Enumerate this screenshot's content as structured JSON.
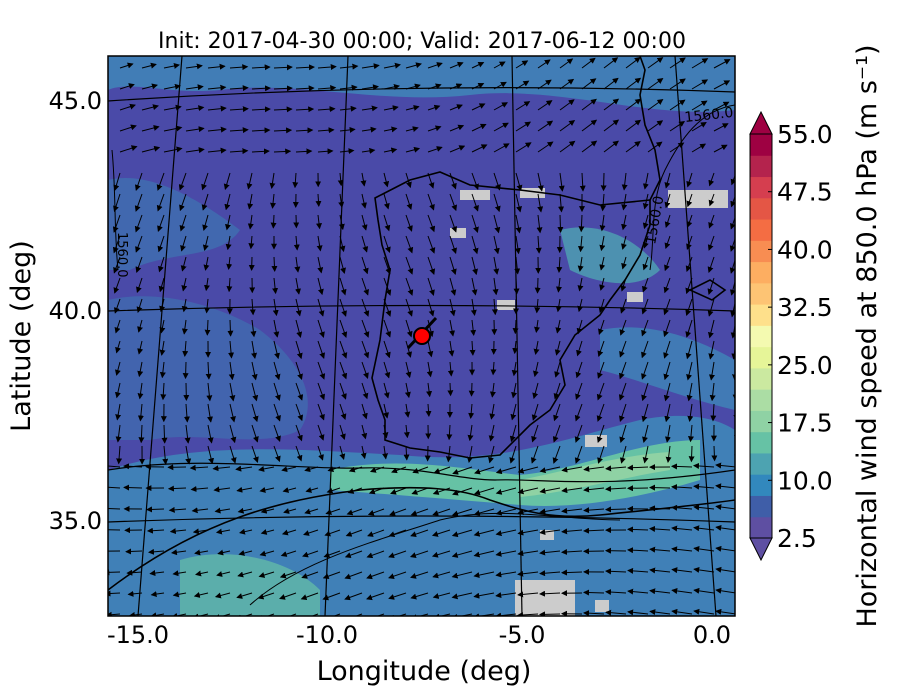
{
  "title": "Init: 2017-04-30 00:00; Valid: 2017-06-12 00:00",
  "xlabel": "Longitude (deg)",
  "ylabel": "Latitude (deg)",
  "x_ticks": [
    "-15.0",
    "-10.0",
    "-5.0",
    "0.0"
  ],
  "y_ticks": [
    "45.0",
    "40.0",
    "35.0"
  ],
  "colorbar": {
    "label": "Horizontal wind speed at 850.0 hPa (m s⁻¹)",
    "ticks": [
      "55.0",
      "47.5",
      "40.0",
      "32.5",
      "25.0",
      "17.5",
      "10.0",
      "2.5"
    ],
    "colors": [
      "#5e4fa2",
      "#3f5ea8",
      "#3288bd",
      "#4da3b1",
      "#66c2a5",
      "#8fd2a4",
      "#abdda4",
      "#cbe9a0",
      "#e6f598",
      "#f4fab0",
      "#fee08b",
      "#fdc474",
      "#fdae61",
      "#f88d52",
      "#f46d43",
      "#e45645",
      "#d53e4f",
      "#b4234d",
      "#9e0142"
    ]
  },
  "contour_labels": [
    "1560.0",
    "1560.0",
    "1560.0"
  ],
  "marker": {
    "label": "site",
    "color": "#ff0000"
  },
  "colors": {
    "low_wind": "#4a4aa8",
    "mid_wind": "#3f86b8",
    "moderate_wind": "#66c2a5",
    "missing": "#cccccc"
  },
  "chart_data": {
    "type": "heatmap",
    "title": "Init: 2017-04-30 00:00; Valid: 2017-06-12 00:00",
    "xlabel": "Longitude (deg)",
    "ylabel": "Latitude (deg)",
    "xlim": [
      -16,
      0
    ],
    "ylim": [
      33,
      46
    ],
    "colorbar_range": [
      2.5,
      55.0
    ],
    "colorbar_ticks": [
      2.5,
      10.0,
      17.5,
      25.0,
      32.5,
      40.0,
      47.5,
      55.0
    ],
    "marker_point": {
      "lon": -7.6,
      "lat": 39.3
    }
  }
}
